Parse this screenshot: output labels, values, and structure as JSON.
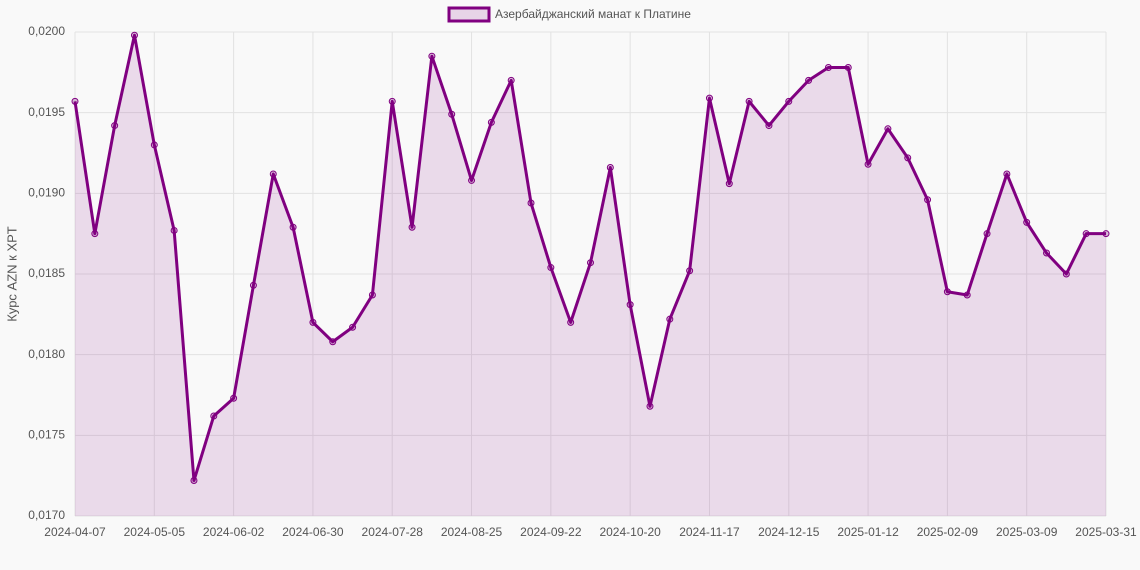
{
  "chart_data": {
    "type": "line",
    "y_label": "Курс AZN к XPT",
    "categories": [
      "2024-04-07",
      null,
      null,
      null,
      "2024-05-05",
      null,
      null,
      null,
      "2024-06-02",
      null,
      null,
      null,
      "2024-06-30",
      null,
      null,
      null,
      "2024-07-28",
      null,
      null,
      null,
      "2024-08-25",
      null,
      null,
      null,
      "2024-09-22",
      null,
      null,
      null,
      "2024-10-20",
      null,
      null,
      null,
      "2024-11-17",
      null,
      null,
      null,
      "2024-12-15",
      null,
      null,
      null,
      "2025-01-12",
      null,
      null,
      null,
      "2025-02-09",
      null,
      null,
      null,
      "2025-03-09",
      null,
      null,
      null,
      "2025-03-31"
    ],
    "series": [
      {
        "name": "Азербайджанский манат к Платине",
        "color": "#800080",
        "values": [
          0.01957,
          0.01875,
          0.01942,
          0.01998,
          0.0193,
          0.01877,
          0.01722,
          0.01762,
          0.01773,
          0.01843,
          0.01912,
          0.01879,
          0.0182,
          0.01808,
          0.01817,
          0.01837,
          0.01957,
          0.01879,
          0.01985,
          0.01949,
          0.01908,
          0.01944,
          0.0197,
          0.01894,
          0.01854,
          0.0182,
          0.01857,
          0.01916,
          0.01831,
          0.01768,
          0.01822,
          0.01852,
          0.01959,
          0.01906,
          0.01957,
          0.01942,
          0.01957,
          0.0197,
          0.01978,
          0.01978,
          0.01918,
          0.0194,
          0.01922,
          0.01896,
          0.01839,
          0.01837,
          0.01875,
          0.01912,
          0.01882,
          0.01863,
          0.0185,
          0.01875,
          0.01875
        ]
      }
    ],
    "ylim": [
      0.017,
      0.02
    ],
    "yticks": [
      {
        "value": 0.017,
        "label": "0,0170"
      },
      {
        "value": 0.0175,
        "label": "0,0175"
      },
      {
        "value": 0.018,
        "label": "0,0180"
      },
      {
        "value": 0.0185,
        "label": "0,0185"
      },
      {
        "value": 0.019,
        "label": "0,0190"
      },
      {
        "value": 0.0195,
        "label": "0,0195"
      },
      {
        "value": 0.02,
        "label": "0,0200"
      }
    ],
    "grid": true,
    "fill": true,
    "legend": "top"
  }
}
